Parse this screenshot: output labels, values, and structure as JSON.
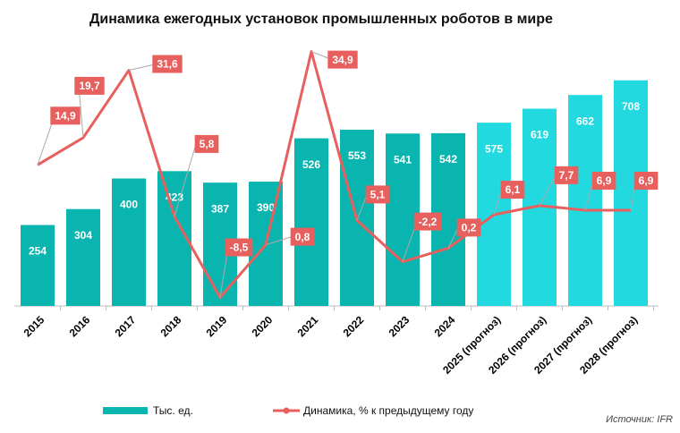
{
  "chart_data": {
    "type": "bar",
    "title": "Динамика ежегодных установок промышленных роботов в мире",
    "categories": [
      "2015",
      "2016",
      "2017",
      "2018",
      "2019",
      "2020",
      "2021",
      "2022",
      "2023",
      "2024",
      "2025 (прогноз)",
      "2026 (прогноз)",
      "2027 (прогноз)",
      "2028 (прогноз)"
    ],
    "series": [
      {
        "name": "Тыс. ед.",
        "type": "bar",
        "color": "#0ab5b0",
        "colors": [
          "#0ab5b0",
          "#0ab5b0",
          "#0ab5b0",
          "#0ab5b0",
          "#0ab5b0",
          "#0ab5b0",
          "#0ab5b0",
          "#0ab5b0",
          "#0ab5b0",
          "#0ab5b0",
          "#22d9df",
          "#22d9df",
          "#22d9df",
          "#22d9df"
        ],
        "values": [
          254,
          304,
          400,
          423,
          387,
          390,
          526,
          553,
          541,
          542,
          575,
          619,
          662,
          708
        ]
      },
      {
        "name": "Динамика, % к предыдущему году",
        "type": "line",
        "axis": "y2",
        "color": "#e8605e",
        "values": [
          14.9,
          19.7,
          31.6,
          5.8,
          -8.5,
          0.8,
          34.9,
          5.1,
          -2.2,
          0.2,
          6.1,
          7.7,
          6.9,
          6.9
        ],
        "value_labels": [
          "14,9",
          "19,7",
          "31,6",
          "5,8",
          "-8,5",
          "0,8",
          "34,9",
          "5,1",
          "-2,2",
          "0,2",
          "6,1",
          "7,7",
          "6,9",
          "6,9"
        ]
      }
    ],
    "ylim": [
      0,
      800
    ],
    "y2lim": [
      -10,
      35
    ],
    "source": "Источник: IFR"
  }
}
